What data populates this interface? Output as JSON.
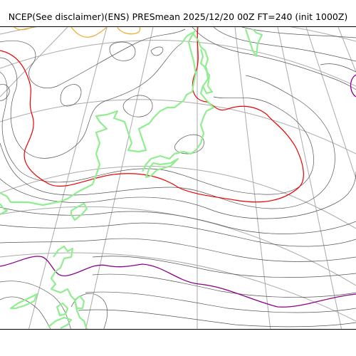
{
  "title": "NCEP(See disclaimer)(ENS) PRESmean 2025/12/20 00Z FT=240 (init 1000Z)",
  "colors": {
    "background": "#ffffff",
    "graticule": "#aaaaaa",
    "isobar_thin": "#444444",
    "isobar_red": "#ee0000",
    "isobar_orange": "#f5a623",
    "isobar_purple": "#8b008b",
    "coastline": "#90ee90"
  }
}
